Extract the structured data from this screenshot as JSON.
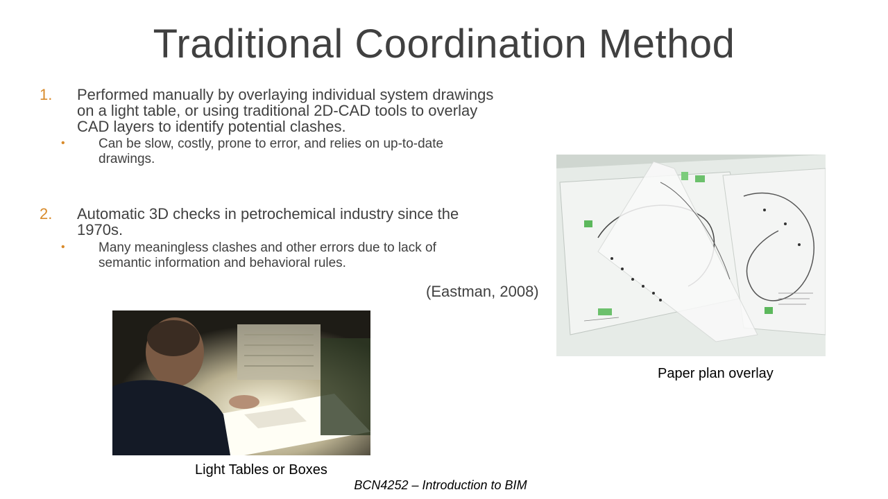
{
  "slide": {
    "title": "Traditional Coordination Method",
    "items": [
      {
        "number": "1.",
        "text_lines": [
          "Performed manually by overlaying individual system drawings",
          "on a light table, or using traditional 2D-CAD tools to overlay",
          "CAD layers to identify potential clashes."
        ],
        "sub_bullet": "•",
        "sub_lines": [
          "Can be slow, costly, prone to error, and relies on up-to-date",
          "drawings."
        ]
      },
      {
        "number": "2.",
        "text_lines": [
          "Automatic 3D checks in petrochemical industry since the",
          "1970s."
        ],
        "sub_bullet": "•",
        "sub_lines": [
          "Many meaningless clashes and other errors due to lack of",
          "semantic information and behavioral rules."
        ]
      }
    ],
    "citation": "(Eastman, 2008)",
    "images": {
      "light_table": {
        "caption": "Light Tables or Boxes"
      },
      "paper_overlay": {
        "caption": "Paper plan overlay"
      }
    },
    "footer": "BCN4252 – Introduction to BIM",
    "colors": {
      "accent": "#d88a2a",
      "text": "#404040"
    }
  }
}
